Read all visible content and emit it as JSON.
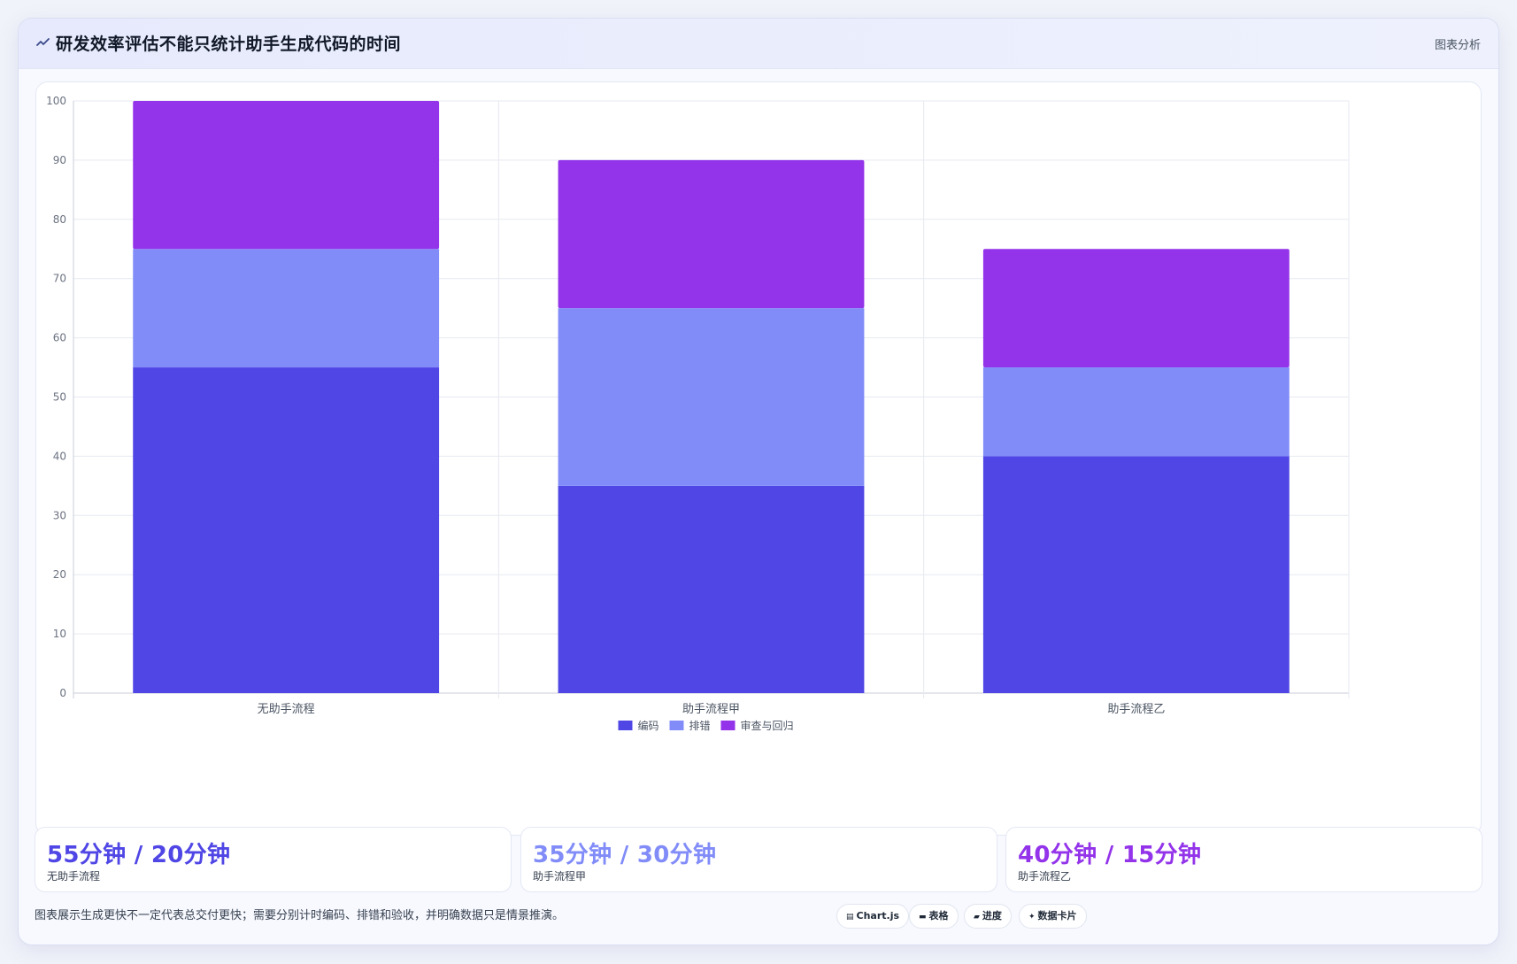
{
  "header": {
    "title": "研发效率评估不能只统计助手生成代码的时间",
    "tag": "图表分析"
  },
  "chart_data": {
    "type": "bar",
    "stacked": true,
    "categories": [
      "无助手流程",
      "助手流程甲",
      "助手流程乙"
    ],
    "series": [
      {
        "name": "编码",
        "values": [
          55,
          35,
          40
        ],
        "color": "#4f46e5"
      },
      {
        "name": "排错",
        "values": [
          20,
          30,
          15
        ],
        "color": "#818cf8"
      },
      {
        "name": "审查与回归",
        "values": [
          25,
          25,
          20
        ],
        "color": "#9333ea"
      }
    ],
    "ylim": [
      0,
      100
    ],
    "yticks": [
      0,
      10,
      20,
      30,
      40,
      50,
      60,
      70,
      80,
      90,
      100
    ],
    "grid": true,
    "legend": "bottom"
  },
  "stats": [
    {
      "value": "55分钟 / 20分钟",
      "label": "无助手流程",
      "color": "#4f46e5"
    },
    {
      "value": "35分钟 / 30分钟",
      "label": "助手流程甲",
      "color": "#818cf8"
    },
    {
      "value": "40分钟 / 15分钟",
      "label": "助手流程乙",
      "color": "#9333ea"
    }
  ],
  "footnote": "图表展示生成更快不一定代表总交付更快；需要分别计时编码、排错和验收，并明确数据只是情景推演。",
  "pills": [
    {
      "icon": "chart-icon",
      "label": "Chart.js"
    },
    {
      "icon": "table-icon",
      "label": "表格"
    },
    {
      "icon": "progress-icon",
      "label": "进度"
    },
    {
      "icon": "sparkle-icon",
      "label": "数据卡片"
    }
  ]
}
